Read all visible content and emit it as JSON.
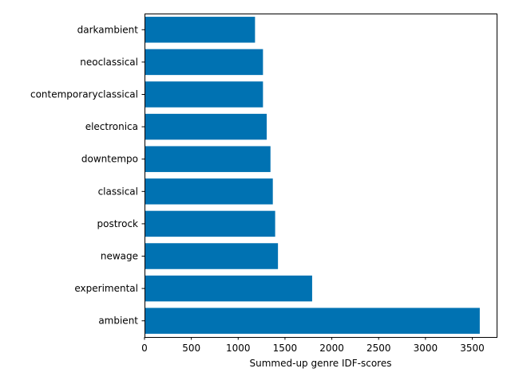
{
  "chart_data": {
    "type": "bar",
    "orientation": "horizontal",
    "title": "",
    "xlabel": "Summed-up genre IDF-scores",
    "ylabel": "",
    "categories": [
      "darkambient",
      "neoclassical",
      "contemporaryclassical",
      "electronica",
      "downtempo",
      "classical",
      "postrock",
      "newage",
      "experimental",
      "ambient"
    ],
    "values": [
      1180,
      1265,
      1265,
      1305,
      1345,
      1370,
      1395,
      1425,
      1790,
      3580
    ],
    "xlim": [
      0,
      3760
    ],
    "xticks": [
      0,
      500,
      1000,
      1500,
      2000,
      2500,
      3000,
      3500
    ],
    "grid": false,
    "legend": "none",
    "bar_color": "#0072b2"
  }
}
